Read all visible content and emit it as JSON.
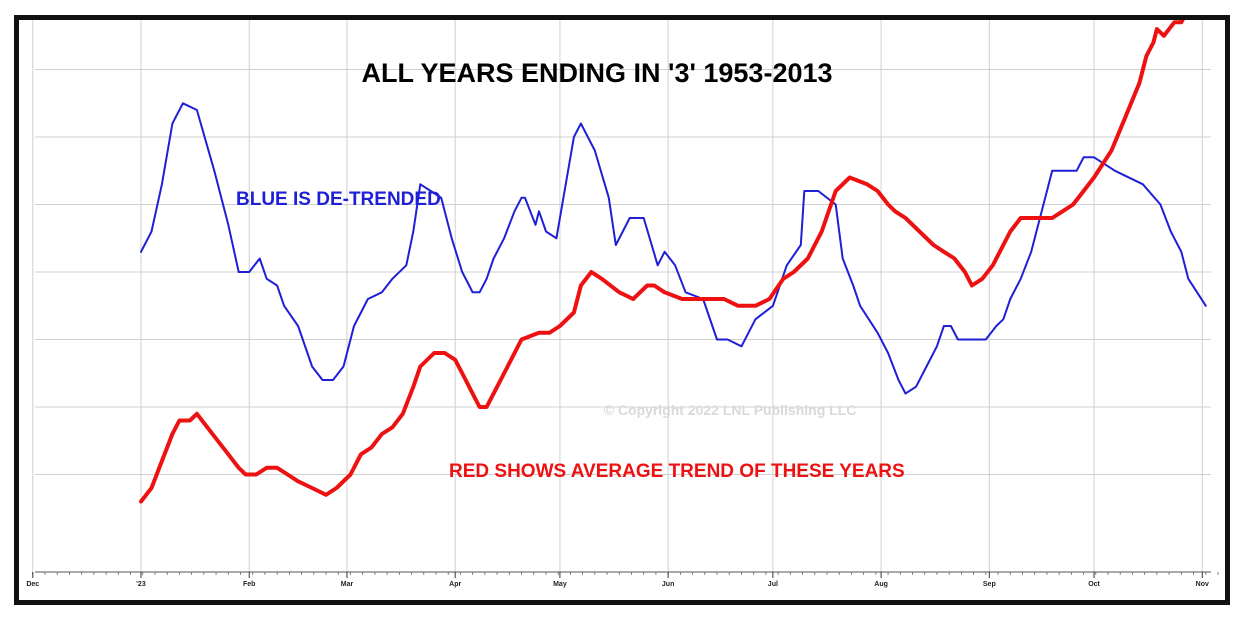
{
  "chart_data": {
    "type": "line",
    "title": "ALL YEARS ENDING IN '3' 1953-2013",
    "xlabel": "",
    "ylabel": "",
    "x_ticks": [
      "Dec",
      "'23",
      "Feb",
      "Mar",
      "Apr",
      "May",
      "Jun",
      "Jul",
      "Aug",
      "Sep",
      "Oct",
      "Nov"
    ],
    "x_tick_days": [
      -31,
      0,
      31,
      59,
      90,
      120,
      151,
      181,
      212,
      243,
      273,
      304
    ],
    "xlim": [
      -31,
      310
    ],
    "ylim": [
      0,
      8
    ],
    "grid": true,
    "y_gridlines": [
      1,
      2,
      3,
      4,
      5,
      6,
      7,
      8
    ],
    "annotations": {
      "blue_label": "BLUE IS DE-TRENDED",
      "red_label": "RED SHOWS AVERAGE TREND OF THESE YEARS",
      "watermark": "© Copyright 2022 LNL Publishing LLC"
    },
    "series": [
      {
        "color": "#1f1fd6",
        "x": [
          0,
          3,
          6,
          9,
          12,
          16,
          21,
          25,
          28,
          31,
          34,
          36,
          39,
          41,
          45,
          49,
          52,
          55,
          58,
          61,
          65,
          69,
          72,
          76,
          78,
          80,
          83,
          86,
          89,
          92,
          94,
          95,
          97,
          99,
          101,
          104,
          107,
          109,
          110,
          113,
          114,
          116,
          119,
          124,
          126,
          130,
          134,
          136,
          138,
          140,
          144,
          148,
          150,
          153,
          156,
          161,
          165,
          168,
          172,
          176,
          181,
          185,
          189,
          190,
          194,
          199,
          201,
          204,
          206,
          211,
          214,
          217,
          219,
          222,
          225,
          228,
          230,
          232,
          234,
          237,
          239,
          242,
          245,
          247,
          249,
          252,
          255,
          258,
          261,
          265,
          268,
          270,
          273,
          279,
          287,
          292,
          295,
          298,
          300,
          305
        ],
        "y": [
          4.3,
          4.6,
          5.3,
          6.2,
          6.5,
          6.4,
          5.5,
          4.7,
          4.0,
          4.0,
          4.2,
          3.9,
          3.8,
          3.5,
          3.2,
          2.6,
          2.4,
          2.4,
          2.6,
          3.2,
          3.6,
          3.7,
          3.9,
          4.1,
          4.6,
          5.3,
          5.2,
          5.1,
          4.5,
          4.0,
          3.8,
          3.7,
          3.7,
          3.9,
          4.2,
          4.5,
          4.9,
          5.1,
          5.1,
          4.7,
          4.9,
          4.6,
          4.5,
          6.0,
          6.2,
          5.8,
          5.1,
          4.4,
          4.6,
          4.8,
          4.8,
          4.1,
          4.3,
          4.1,
          3.7,
          3.6,
          3.0,
          3.0,
          2.9,
          3.3,
          3.5,
          4.1,
          4.4,
          5.2,
          5.2,
          5.0,
          4.2,
          3.8,
          3.5,
          3.1,
          2.8,
          2.4,
          2.2,
          2.3,
          2.6,
          2.9,
          3.2,
          3.2,
          3.0,
          3.0,
          3.0,
          3.0,
          3.2,
          3.3,
          3.6,
          3.9,
          4.3,
          4.9,
          5.5,
          5.5,
          5.5,
          5.7,
          5.7,
          5.5,
          5.3,
          5.0,
          4.6,
          4.3,
          3.9,
          3.5
        ]
      },
      {
        "color": "#ee1111",
        "x": [
          0,
          3,
          6,
          9,
          11,
          14,
          16,
          19,
          22,
          25,
          28,
          30,
          33,
          36,
          39,
          42,
          45,
          49,
          53,
          56,
          60,
          63,
          66,
          69,
          72,
          75,
          78,
          80,
          84,
          87,
          90,
          93,
          95,
          97,
          99,
          102,
          105,
          109,
          114,
          117,
          120,
          124,
          126,
          129,
          132,
          137,
          141,
          145,
          147,
          150,
          155,
          159,
          162,
          167,
          171,
          176,
          180,
          184,
          187,
          191,
          195,
          199,
          203,
          208,
          211,
          214,
          216,
          219,
          223,
          227,
          230,
          233,
          236,
          238,
          241,
          244,
          247,
          249,
          252,
          255,
          258,
          261,
          264,
          267,
          270,
          273,
          278,
          282,
          286,
          288,
          290,
          291,
          293,
          296,
          298,
          300,
          302
        ],
        "y": [
          0.6,
          0.8,
          1.2,
          1.6,
          1.8,
          1.8,
          1.9,
          1.7,
          1.5,
          1.3,
          1.1,
          1.0,
          1.0,
          1.1,
          1.1,
          1.0,
          0.9,
          0.8,
          0.7,
          0.8,
          1.0,
          1.3,
          1.4,
          1.6,
          1.7,
          1.9,
          2.3,
          2.6,
          2.8,
          2.8,
          2.7,
          2.4,
          2.2,
          2.0,
          2.0,
          2.3,
          2.6,
          3.0,
          3.1,
          3.1,
          3.2,
          3.4,
          3.8,
          4.0,
          3.9,
          3.7,
          3.6,
          3.8,
          3.8,
          3.7,
          3.6,
          3.6,
          3.6,
          3.6,
          3.5,
          3.5,
          3.6,
          3.9,
          4.0,
          4.2,
          4.6,
          5.2,
          5.4,
          5.3,
          5.2,
          5.0,
          4.9,
          4.8,
          4.6,
          4.4,
          4.3,
          4.2,
          4.0,
          3.8,
          3.9,
          4.1,
          4.4,
          4.6,
          4.8,
          4.8,
          4.8,
          4.8,
          4.9,
          5.0,
          5.2,
          5.4,
          5.8,
          6.3,
          6.8,
          7.2,
          7.4,
          7.6,
          7.5,
          7.7,
          7.7,
          7.9,
          8.0
        ]
      }
    ]
  }
}
